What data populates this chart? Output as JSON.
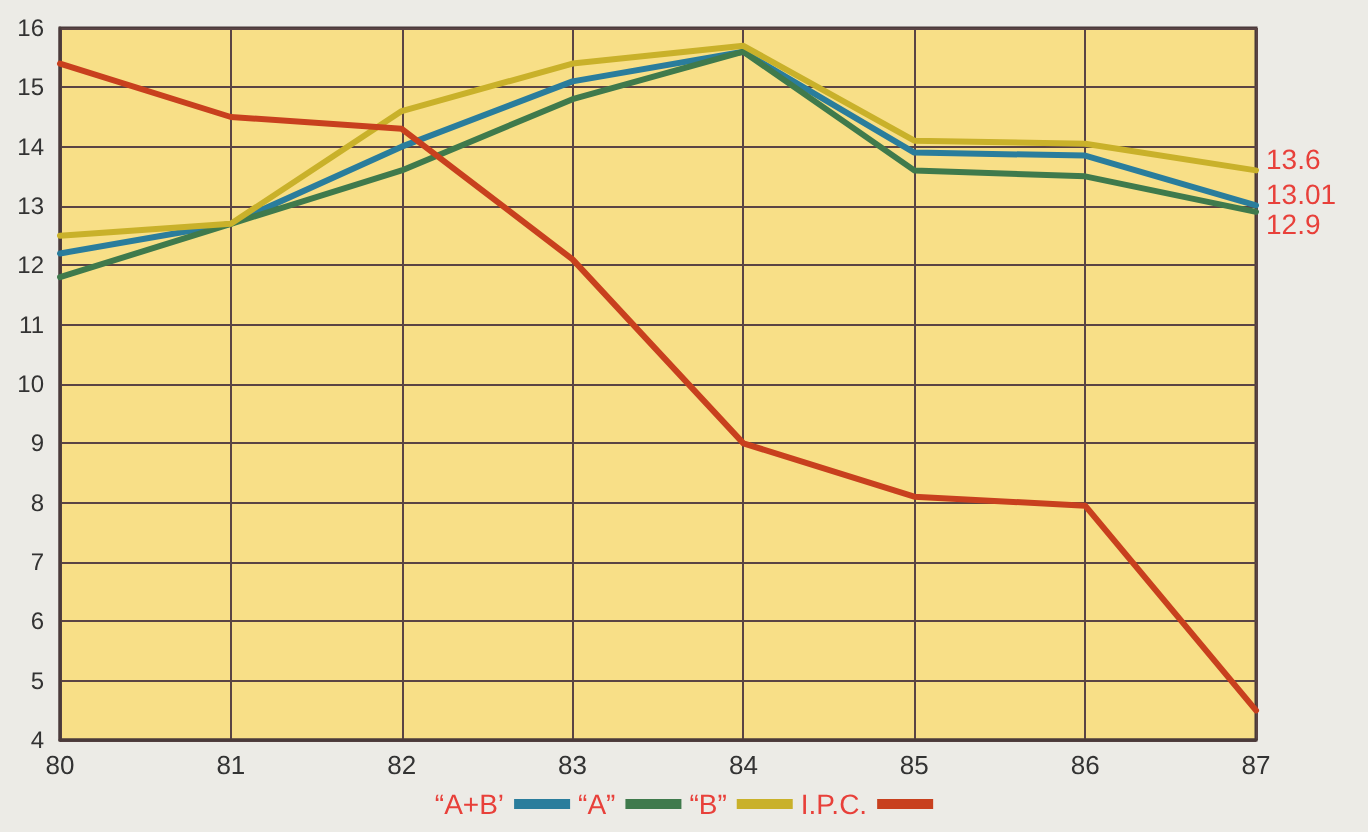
{
  "chart_data": {
    "type": "line",
    "x": [
      80,
      81,
      82,
      83,
      84,
      85,
      86,
      87
    ],
    "series": [
      {
        "name": "“A+B’",
        "color": "#2a7d9c",
        "values": [
          12.2,
          12.7,
          14.0,
          15.1,
          15.6,
          13.9,
          13.85,
          13.01
        ],
        "value_labels": [
          null,
          null,
          null,
          null,
          null,
          null,
          null,
          "13.01"
        ]
      },
      {
        "name": "“A”",
        "color": "#3f7a4c",
        "values": [
          11.8,
          12.7,
          13.6,
          14.8,
          15.6,
          13.6,
          13.5,
          12.9
        ],
        "value_labels": [
          null,
          null,
          null,
          null,
          null,
          null,
          null,
          "12.9"
        ]
      },
      {
        "name": "“B”",
        "color": "#c9b12a",
        "values": [
          12.5,
          12.7,
          14.6,
          15.4,
          15.7,
          14.1,
          14.05,
          13.6
        ],
        "value_labels": [
          null,
          null,
          null,
          null,
          null,
          null,
          null,
          "13.6"
        ]
      },
      {
        "name": "I.P.C.",
        "color": "#c8401e",
        "values": [
          15.4,
          14.5,
          14.3,
          12.1,
          9.0,
          8.1,
          7.95,
          4.5
        ]
      }
    ],
    "xlim": [
      80,
      87
    ],
    "xticks": [
      80,
      81,
      82,
      83,
      84,
      85,
      86,
      87
    ],
    "ylim": [
      4,
      16
    ],
    "yticks": [
      4,
      5,
      6,
      7,
      8,
      9,
      10,
      11,
      12,
      13,
      14,
      15,
      16
    ],
    "grid": true,
    "legend": "bottom",
    "marker": "none",
    "line_style": "solid"
  }
}
